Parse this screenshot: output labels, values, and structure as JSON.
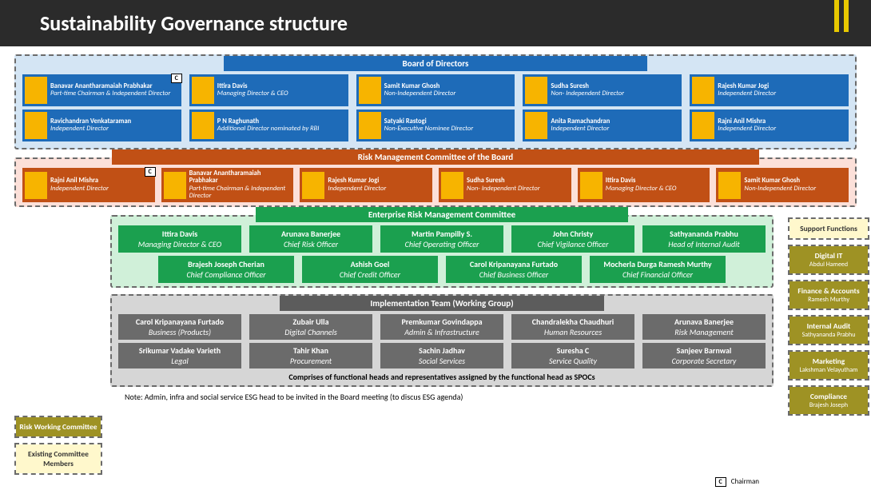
{
  "title": "Sustainability Governance structure",
  "colors": {
    "header_bg": "#2b2b2b",
    "accent": "#e8c800",
    "board_bg": "#d4e5f4",
    "board_card": "#1e6bb8",
    "rmc_bg": "#fce0d9",
    "rmc_card": "#c15015",
    "erm_bg": "#d0f0d9",
    "erm_card": "#1ba04f",
    "impl_bg": "#d6d6d6",
    "impl_card": "#6b6b6b",
    "olive": "#9e9224",
    "cream": "#fff8cc"
  },
  "board": {
    "title": "Board of Directors",
    "row1": [
      {
        "name": "Banavar Anantharamaiah Prabhakar",
        "role": "Part-time Chairman & Independent Director",
        "chair": true
      },
      {
        "name": "Ittira Davis",
        "role": "Managing Director & CEO"
      },
      {
        "name": "Samit Kumar Ghosh",
        "role": "Non-Independent Director"
      },
      {
        "name": "Sudha Suresh",
        "role": "Non- Independent Director"
      },
      {
        "name": "Rajesh Kumar Jogi",
        "role": "Independent Director"
      }
    ],
    "row2": [
      {
        "name": "Ravichandran Venkataraman",
        "role": "Independent Director"
      },
      {
        "name": "P N Raghunath",
        "role": "Additional Director nominated by RBI"
      },
      {
        "name": "Satyaki Rastogi",
        "role": "Non-Executive Nominee Director"
      },
      {
        "name": "Anita Ramachandran",
        "role": "Independent Director"
      },
      {
        "name": "Rajni Anil Mishra",
        "role": "Independent Director"
      }
    ]
  },
  "rmc": {
    "title": "Risk Management Committee of the Board",
    "members": [
      {
        "name": "Rajni Anil Mishra",
        "role": "Independent Director",
        "chair": true
      },
      {
        "name": "Banavar Anantharamaiah Prabhakar",
        "role": "Part-time Chairman & Independent Director"
      },
      {
        "name": "Rajesh Kumar Jogi",
        "role": "Independent Director"
      },
      {
        "name": "Sudha Suresh",
        "role": "Non- Independent Director"
      },
      {
        "name": "Ittira Davis",
        "role": "Managing Director & CEO"
      },
      {
        "name": "Samit Kumar Ghosh",
        "role": "Non-Independent Director"
      }
    ]
  },
  "erm": {
    "title": "Enterprise Risk Management Committee",
    "row1": [
      {
        "name": "Ittira Davis",
        "role": "Managing Director & CEO"
      },
      {
        "name": "Arunava Banerjee",
        "role": "Chief Risk Officer"
      },
      {
        "name": "Martin Pampilly S.",
        "role": "Chief Operating Officer"
      },
      {
        "name": "John Christy",
        "role": "Chief Vigilance Officer"
      },
      {
        "name": "Sathyananda Prabhu",
        "role": "Head of Internal Audit"
      }
    ],
    "row2": [
      {
        "name": "Brajesh Joseph Cherian",
        "role": "Chief Compliance Officer"
      },
      {
        "name": "Ashish Goel",
        "role": "Chief Credit Officer"
      },
      {
        "name": "Carol Kripanayana Furtado",
        "role": "Chief Business Officer"
      },
      {
        "name": "Mocherla Durga Ramesh Murthy",
        "role": "Chief Financial Officer"
      }
    ]
  },
  "impl": {
    "title": "Implementation Team (Working Group)",
    "row1": [
      {
        "name": "Carol Kripanayana Furtado",
        "role": "Business (Products)"
      },
      {
        "name": "Zubair Ulla",
        "role": "Digital  Channels"
      },
      {
        "name": "Premkumar Govindappa",
        "role": "Admin & Infrastructure"
      },
      {
        "name": "Chandralekha Chaudhuri",
        "role": "Human Resources"
      },
      {
        "name": "Arunava Banerjee",
        "role": "Risk Management"
      }
    ],
    "row2": [
      {
        "name": "Srikumar Vadake Varieth",
        "role": "Legal"
      },
      {
        "name": "Tahir Khan",
        "role": "Procurement"
      },
      {
        "name": "Sachin Jadhav",
        "role": "Social Services"
      },
      {
        "name": "Suresha C",
        "role": "Service Quality"
      },
      {
        "name": "Sanjeev Barnwal",
        "role": "Corporate Secretary"
      }
    ],
    "note": "Comprises of functional heads and representatives assigned by the functional head as SPOCs"
  },
  "left": {
    "box1": "Risk Working Committee",
    "box2": "Existing Committee Members"
  },
  "right": {
    "title": "Support Functions",
    "items": [
      {
        "label": "Digital IT",
        "sub": "Abdul Hameed"
      },
      {
        "label": "Finance & Accounts",
        "sub": "Ramesh Murthy"
      },
      {
        "label": "Internal Audit",
        "sub": "Sathyananda Prabhu"
      },
      {
        "label": "Marketing",
        "sub": "Lakshman Velayutham"
      },
      {
        "label": "Compliance",
        "sub": "Brajesh Joseph"
      }
    ]
  },
  "footer": "Note: Admin, infra and social service ESG head to be invited in the Board meeting (to discus ESG agenda)",
  "legend": {
    "c": "C",
    "label": "Chairman"
  }
}
